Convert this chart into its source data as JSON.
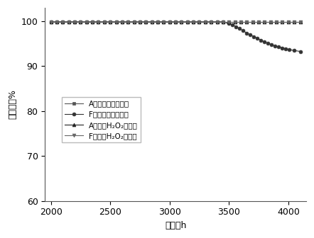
{
  "title": "",
  "xlabel": "时间，h",
  "ylabel": "脲除率，%",
  "xlim": [
    1950,
    4150
  ],
  "ylim": [
    60,
    103
  ],
  "xticks": [
    2000,
    2500,
    3000,
    3500,
    4000
  ],
  "yticks": [
    60,
    70,
    80,
    90,
    100
  ],
  "series": [
    {
      "label": "A催化剂乙醒脲除率",
      "marker": "s",
      "color": "#555555",
      "x": [
        2000,
        2050,
        2100,
        2150,
        2200,
        2250,
        2300,
        2350,
        2400,
        2450,
        2500,
        2550,
        2600,
        2650,
        2700,
        2750,
        2800,
        2850,
        2900,
        2950,
        3000,
        3050,
        3100,
        3150,
        3200,
        3250,
        3300,
        3350,
        3400,
        3450,
        3500,
        3550,
        3600,
        3650,
        3700,
        3750,
        3800,
        3850,
        3900,
        3950,
        4000,
        4050,
        4100
      ],
      "y": [
        99.9,
        99.9,
        99.9,
        99.9,
        99.9,
        99.9,
        99.9,
        99.9,
        99.9,
        99.9,
        99.9,
        99.9,
        99.9,
        99.9,
        99.9,
        99.9,
        99.9,
        99.9,
        99.9,
        99.9,
        99.9,
        99.9,
        99.9,
        99.9,
        99.9,
        99.9,
        99.9,
        99.9,
        99.9,
        99.9,
        99.9,
        99.9,
        99.9,
        99.9,
        99.9,
        99.9,
        99.9,
        99.9,
        99.9,
        99.9,
        99.9,
        99.9,
        99.9
      ]
    },
    {
      "label": "F催化剂乙醒脲除率",
      "marker": "o",
      "color": "#333333",
      "x": [
        2000,
        2050,
        2100,
        2150,
        2200,
        2250,
        2300,
        2350,
        2400,
        2450,
        2500,
        2550,
        2600,
        2650,
        2700,
        2750,
        2800,
        2850,
        2900,
        2950,
        3000,
        3050,
        3100,
        3150,
        3200,
        3250,
        3300,
        3350,
        3400,
        3450,
        3500,
        3530,
        3560,
        3590,
        3620,
        3650,
        3680,
        3710,
        3740,
        3770,
        3800,
        3830,
        3860,
        3890,
        3920,
        3950,
        3980,
        4010,
        4050,
        4100
      ],
      "y": [
        99.9,
        99.9,
        99.9,
        99.9,
        99.9,
        99.9,
        99.9,
        99.9,
        99.9,
        99.9,
        99.9,
        99.9,
        99.9,
        99.9,
        99.9,
        99.9,
        99.9,
        99.9,
        99.9,
        99.9,
        99.9,
        99.9,
        99.9,
        99.9,
        99.9,
        99.9,
        99.9,
        99.9,
        99.9,
        99.9,
        99.5,
        99.2,
        98.8,
        98.4,
        97.9,
        97.4,
        97.0,
        96.6,
        96.2,
        95.8,
        95.4,
        95.1,
        94.8,
        94.5,
        94.3,
        94.1,
        93.9,
        93.7,
        93.5,
        93.3
      ]
    },
    {
      "label": "A催化剂H₂O₂脲除率",
      "marker": "^",
      "color": "#222222",
      "x": [
        2000,
        2050,
        2100,
        2150,
        2200,
        2250,
        2300,
        2350,
        2400,
        2450,
        2500,
        2550,
        2600,
        2650,
        2700,
        2750,
        2800,
        2850,
        2900,
        2950,
        3000,
        3050,
        3100,
        3150,
        3200,
        3250,
        3300,
        3350,
        3400,
        3450,
        3500,
        3550,
        3600,
        3650,
        3700,
        3750,
        3800,
        3850,
        3900,
        3950,
        4000,
        4050,
        4100
      ],
      "y": [
        99.9,
        99.9,
        99.9,
        99.9,
        99.9,
        99.9,
        99.9,
        99.9,
        99.9,
        99.9,
        99.9,
        99.9,
        99.9,
        99.9,
        99.9,
        99.9,
        99.9,
        99.9,
        99.9,
        99.9,
        99.9,
        99.9,
        99.9,
        99.9,
        99.9,
        99.9,
        99.9,
        99.9,
        99.9,
        99.9,
        99.9,
        99.9,
        99.9,
        99.9,
        99.9,
        99.9,
        99.9,
        99.9,
        99.9,
        99.9,
        99.9,
        99.9,
        99.9
      ]
    },
    {
      "label": "F催化剂H₂O₂脲除率",
      "marker": "v",
      "color": "#666666",
      "x": [
        2000,
        2050,
        2100,
        2150,
        2200,
        2250,
        2300,
        2350,
        2400,
        2450,
        2500,
        2550,
        2600,
        2650,
        2700,
        2750,
        2800,
        2850,
        2900,
        2950,
        3000,
        3050,
        3100,
        3150,
        3200,
        3250,
        3300,
        3350,
        3400,
        3450,
        3500,
        3550,
        3600,
        3650,
        3700,
        3750,
        3800,
        3850,
        3900,
        3950,
        4000,
        4050,
        4100
      ],
      "y": [
        99.9,
        99.9,
        99.9,
        99.9,
        99.9,
        99.9,
        99.9,
        99.9,
        99.9,
        99.9,
        99.9,
        99.9,
        99.9,
        99.9,
        99.9,
        99.9,
        99.9,
        99.9,
        99.9,
        99.9,
        99.9,
        99.9,
        99.9,
        99.9,
        99.9,
        99.9,
        99.9,
        99.9,
        99.9,
        99.9,
        99.9,
        99.9,
        99.9,
        99.9,
        99.9,
        99.9,
        99.9,
        99.9,
        99.9,
        99.9,
        99.9,
        99.9,
        99.9
      ]
    }
  ],
  "bg_color": "#ffffff",
  "linewidth": 0.8,
  "markersize": 3.5
}
